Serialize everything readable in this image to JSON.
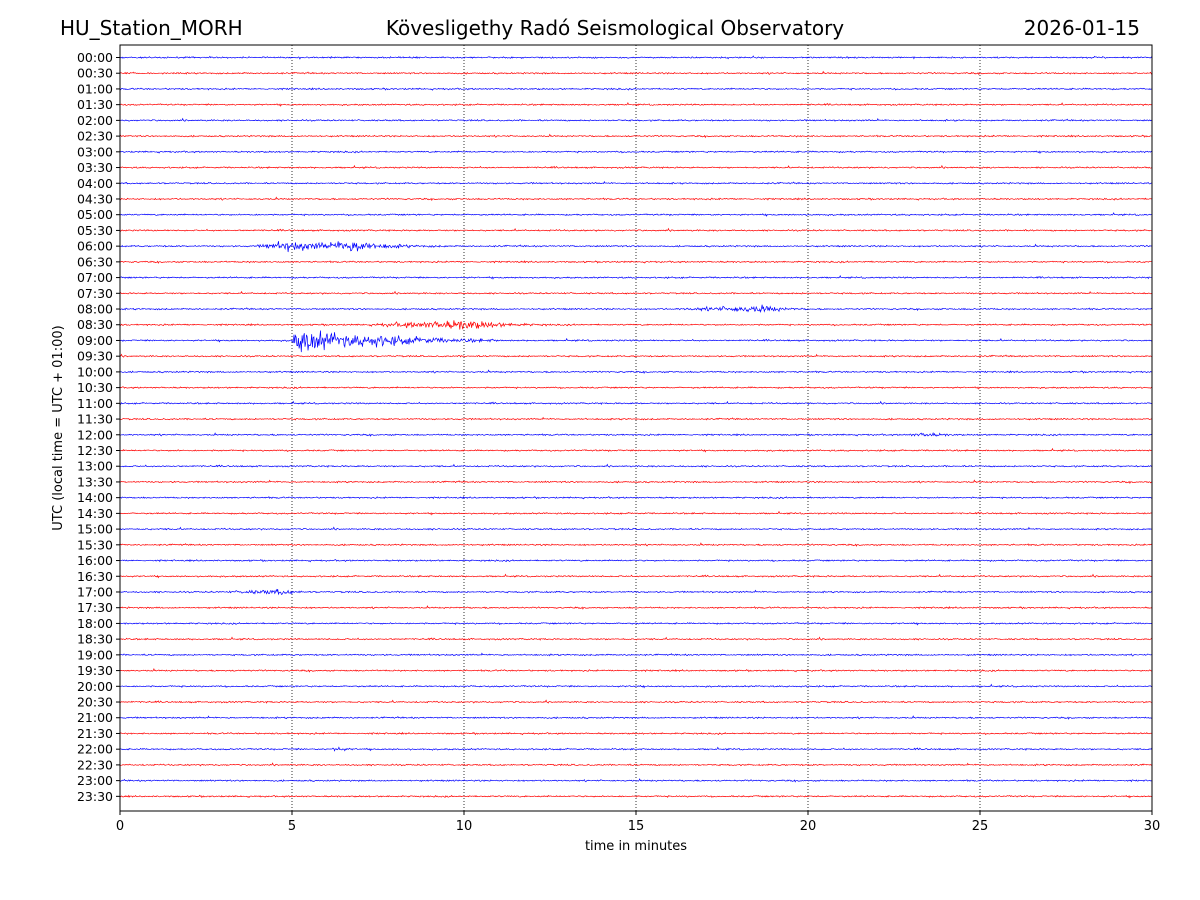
{
  "header": {
    "station": "HU_Station_MORH",
    "observatory": "Kövesligethy Radó Seismological Observatory",
    "date": "2026-01-15"
  },
  "colors": {
    "trace_a": "#0000ff",
    "trace_b": "#ff0000",
    "grid": "#000000"
  },
  "chart_data": {
    "type": "line",
    "title": "Kövesligethy Radó Seismological Observatory",
    "xlabel": "time in minutes",
    "ylabel": "UTC (local time = UTC + 01:00)",
    "xlim": [
      0,
      30
    ],
    "xticks": [
      0,
      5,
      10,
      15,
      20,
      25,
      30
    ],
    "xtick_labels": [
      "0",
      "5",
      "10",
      "15",
      "20",
      "25",
      "30"
    ],
    "grid_x_minutes": [
      5,
      10,
      15,
      20,
      25
    ],
    "rows": [
      "00:00",
      "00:30",
      "01:00",
      "01:30",
      "02:00",
      "02:30",
      "03:00",
      "03:30",
      "04:00",
      "04:30",
      "05:00",
      "05:30",
      "06:00",
      "06:30",
      "07:00",
      "07:30",
      "08:00",
      "08:30",
      "09:00",
      "09:30",
      "10:00",
      "10:30",
      "11:00",
      "11:30",
      "12:00",
      "12:30",
      "13:00",
      "13:30",
      "14:00",
      "14:30",
      "15:00",
      "15:30",
      "16:00",
      "16:30",
      "17:00",
      "17:30",
      "18:00",
      "18:30",
      "19:00",
      "19:30",
      "20:00",
      "20:30",
      "21:00",
      "21:30",
      "22:00",
      "22:30",
      "23:00",
      "23:30"
    ],
    "row_colors": [
      "blue",
      "red"
    ],
    "noise_amplitude": 0.12,
    "events": [
      {
        "row": "06:00",
        "start_min": 3.9,
        "peak_min": 4.9,
        "end_min": 9.5,
        "amplitude": 0.75
      },
      {
        "row": "06:00",
        "start_min": 6.0,
        "peak_min": 6.9,
        "end_min": 8.5,
        "amplitude": 0.9
      },
      {
        "row": "08:00",
        "start_min": 16.0,
        "peak_min": 18.8,
        "end_min": 20.0,
        "amplitude": 0.5
      },
      {
        "row": "08:30",
        "start_min": 7.0,
        "peak_min": 10.2,
        "end_min": 12.5,
        "amplitude": 0.75
      },
      {
        "row": "09:00",
        "start_min": 4.9,
        "peak_min": 5.2,
        "end_min": 11.0,
        "amplitude": 2.0
      },
      {
        "row": "09:00",
        "start_min": 7.0,
        "peak_min": 7.3,
        "end_min": 10.5,
        "amplitude": 0.35
      },
      {
        "row": "12:00",
        "start_min": 22.8,
        "peak_min": 23.5,
        "end_min": 24.5,
        "amplitude": 0.3
      },
      {
        "row": "17:00",
        "start_min": 3.0,
        "peak_min": 4.8,
        "end_min": 5.6,
        "amplitude": 0.35
      },
      {
        "row": "22:00",
        "start_min": 6.1,
        "peak_min": 6.3,
        "end_min": 6.8,
        "amplitude": 0.45
      }
    ]
  }
}
